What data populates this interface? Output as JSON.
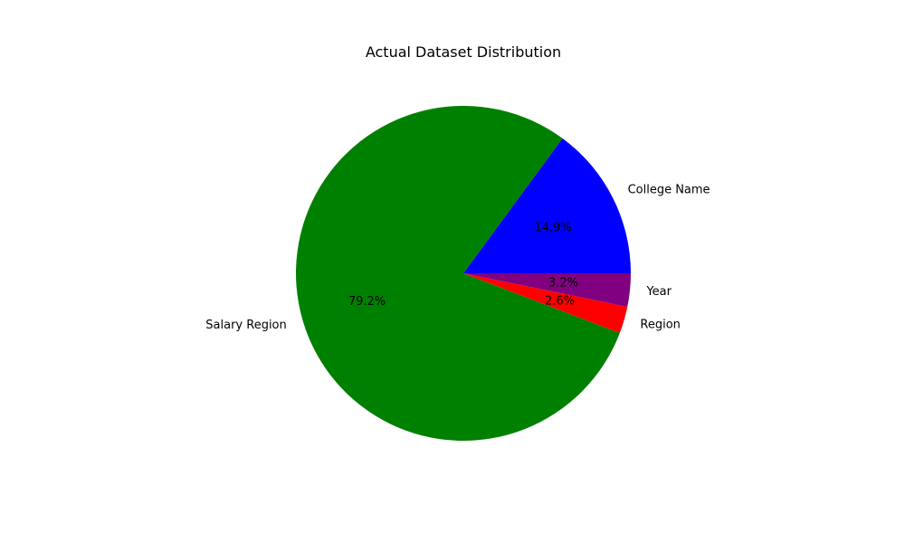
{
  "chart_data": {
    "type": "pie",
    "title": "Actual Dataset Distribution",
    "start_angle_deg": 0,
    "direction": "counterclockwise",
    "slices": [
      {
        "label": "College Name",
        "value": 14.9,
        "pct_label": "14.9%",
        "color": "#0000ff"
      },
      {
        "label": "Salary Region",
        "value": 79.2,
        "pct_label": "79.2%",
        "color": "#008000"
      },
      {
        "label": "Region",
        "value": 2.6,
        "pct_label": "2.6%",
        "color": "#ff0000"
      },
      {
        "label": "Year",
        "value": 3.2,
        "pct_label": "3.2%",
        "color": "#800080"
      }
    ]
  }
}
